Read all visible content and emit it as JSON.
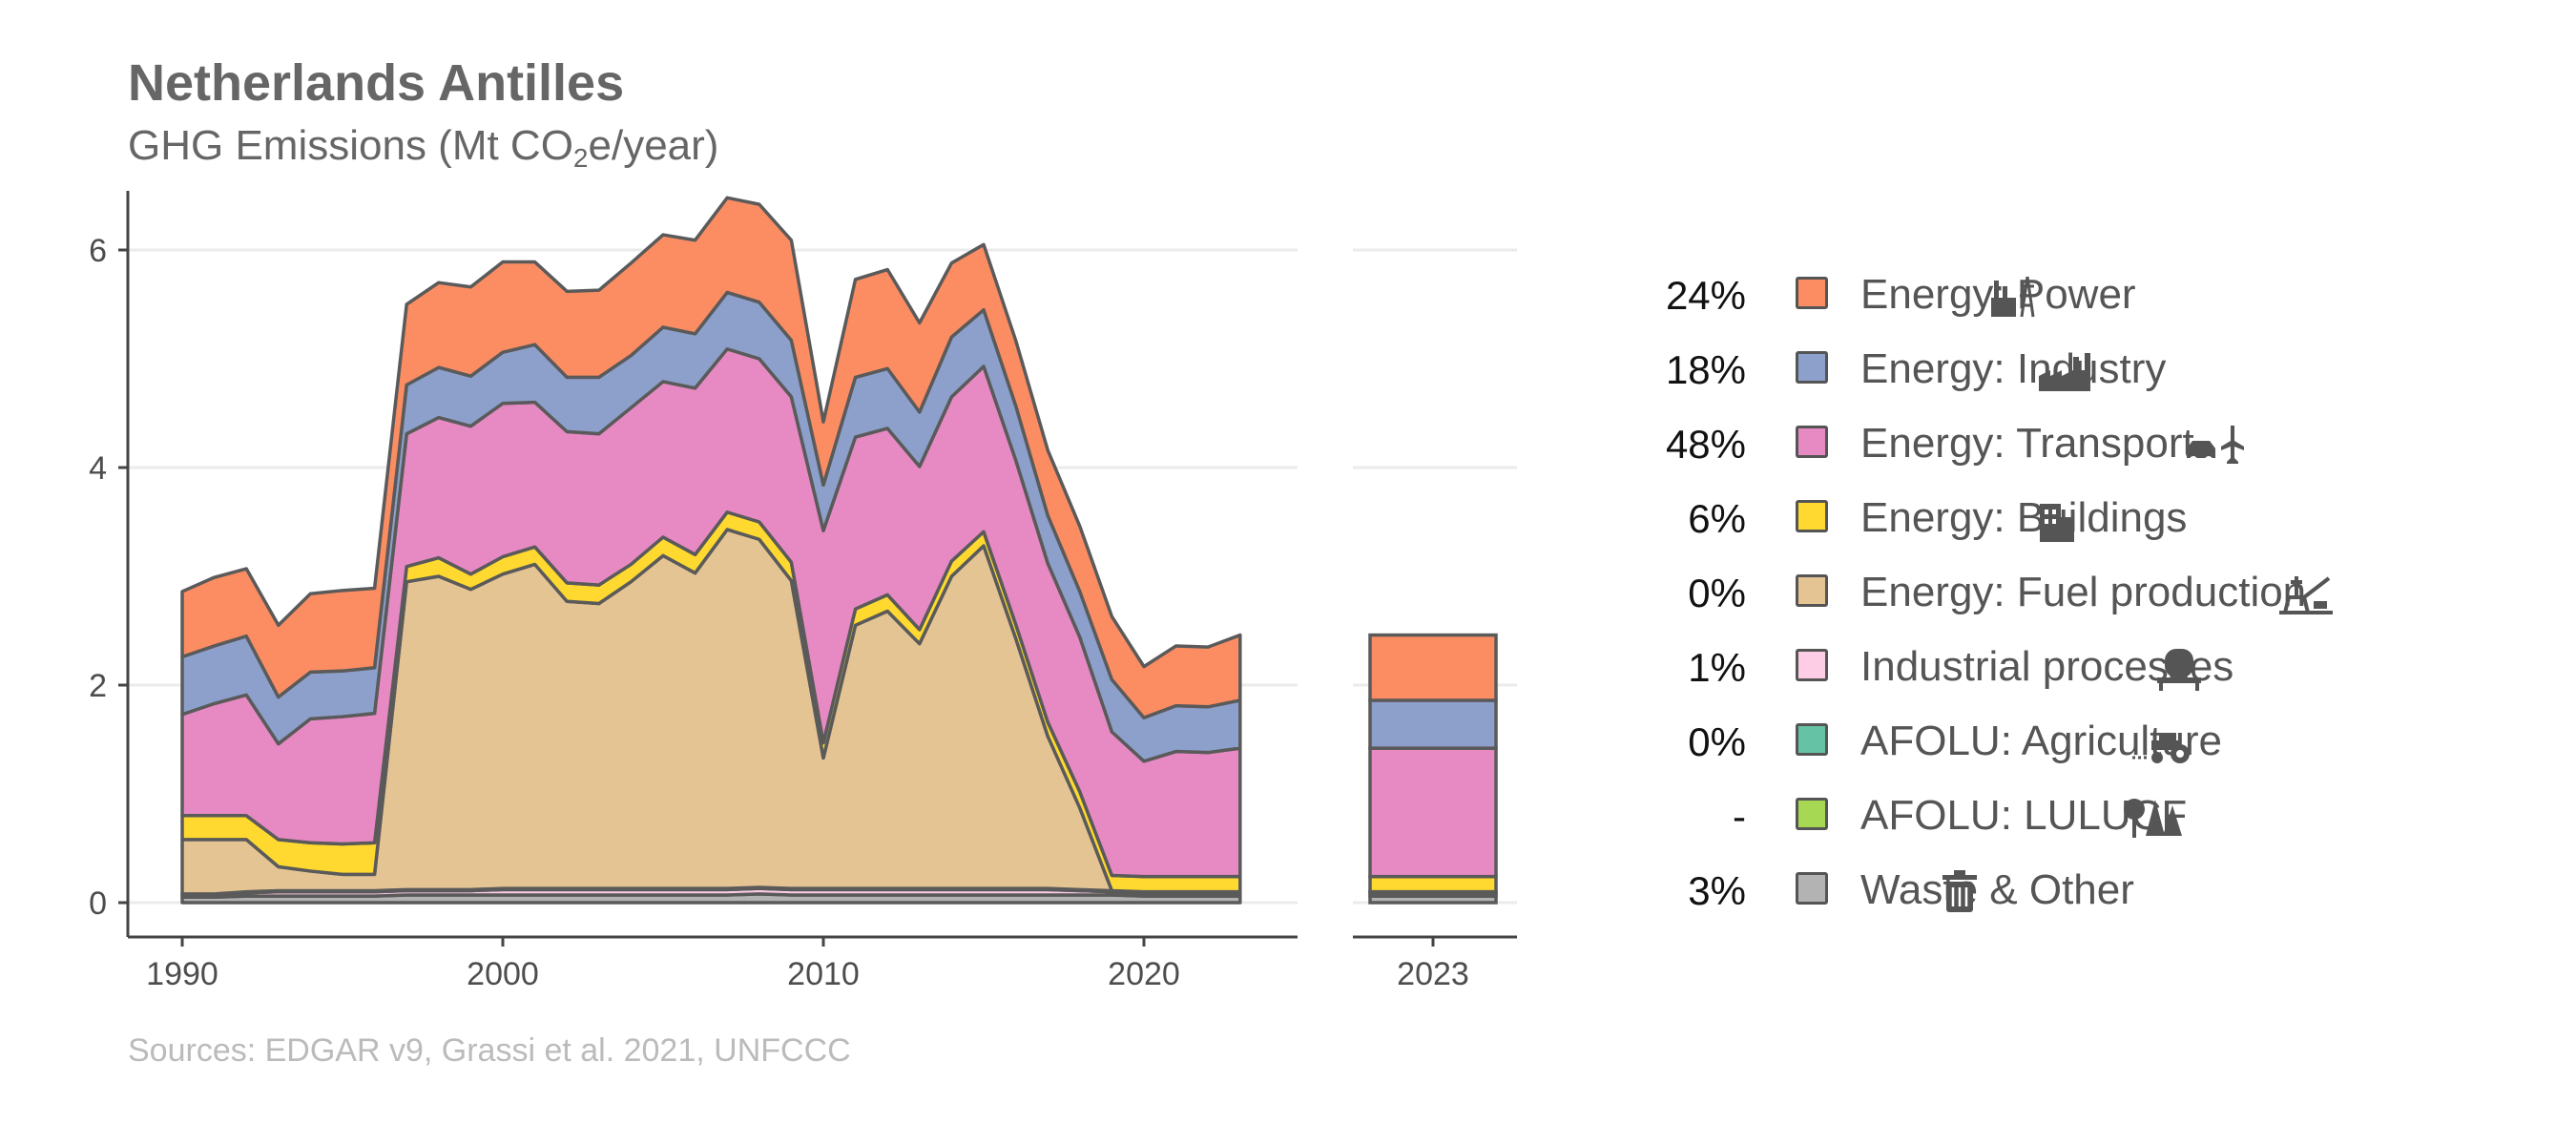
{
  "header": {
    "title": "Netherlands Antilles",
    "subtitle_main": "GHG Emissions (Mt CO",
    "subtitle_sub": "2",
    "subtitle_end": "e/year)"
  },
  "source": "Sources: EDGAR v9, Grassi et al. 2021, UNFCCC",
  "legend": [
    {
      "pct": "24%",
      "label": "Energy: Power",
      "color": "#FC8D62",
      "icon": "power-plant-pylon-icon"
    },
    {
      "pct": "18%",
      "label": "Energy: Industry",
      "color": "#8DA0CB",
      "icon": "factory-icon"
    },
    {
      "pct": "48%",
      "label": "Energy: Transport",
      "color": "#E78AC3",
      "icon": "car-plane-icon"
    },
    {
      "pct": "6%",
      "label": "Energy: Buildings",
      "color": "#FFD92F",
      "icon": "buildings-icon"
    },
    {
      "pct": "0%",
      "label": "Energy: Fuel production",
      "color": "#E5C494",
      "icon": "oil-rig-icon"
    },
    {
      "pct": "1%",
      "label": "Industrial processes",
      "color": "#FCCDE5",
      "icon": "cement-mixer-icon"
    },
    {
      "pct": "0%",
      "label": "AFOLU: Agriculture",
      "color": "#66C2A5",
      "icon": "tractor-icon"
    },
    {
      "pct": "-",
      "label": "AFOLU: LULUCF",
      "color": "#A6D854",
      "icon": "trees-icon"
    },
    {
      "pct": "3%",
      "label": "Waste & Other",
      "color": "#B3B3B3",
      "icon": "trash-can-icon"
    }
  ],
  "chart_data": {
    "type": "area",
    "stacked": true,
    "ylim": [
      0,
      6.6
    ],
    "yticks": [
      0,
      2,
      4,
      6
    ],
    "xlim": [
      1988.4,
      2024.5
    ],
    "xticks": [
      1990,
      2000,
      2010,
      2020
    ],
    "grid": true,
    "x": [
      1990,
      1991,
      1992,
      1993,
      1994,
      1995,
      1996,
      1997,
      1998,
      1999,
      2000,
      2001,
      2002,
      2003,
      2004,
      2005,
      2006,
      2007,
      2008,
      2009,
      2010,
      2011,
      2012,
      2013,
      2014,
      2015,
      2016,
      2017,
      2018,
      2019,
      2020,
      2021,
      2022,
      2023
    ],
    "series": [
      {
        "name": "Waste & Other",
        "color": "#B3B3B3",
        "values": [
          0.05,
          0.05,
          0.06,
          0.06,
          0.06,
          0.06,
          0.06,
          0.07,
          0.07,
          0.07,
          0.07,
          0.07,
          0.07,
          0.07,
          0.07,
          0.07,
          0.07,
          0.07,
          0.08,
          0.07,
          0.07,
          0.07,
          0.07,
          0.07,
          0.07,
          0.07,
          0.07,
          0.07,
          0.07,
          0.07,
          0.06,
          0.06,
          0.06,
          0.06
        ]
      },
      {
        "name": "Industrial processes",
        "color": "#FCCDE5",
        "values": [
          0.02,
          0.02,
          0.03,
          0.04,
          0.04,
          0.04,
          0.04,
          0.04,
          0.04,
          0.04,
          0.05,
          0.05,
          0.05,
          0.05,
          0.05,
          0.05,
          0.05,
          0.05,
          0.05,
          0.05,
          0.05,
          0.05,
          0.05,
          0.05,
          0.05,
          0.05,
          0.05,
          0.05,
          0.04,
          0.03,
          0.03,
          0.03,
          0.03,
          0.03
        ]
      },
      {
        "name": "AFOLU: Agriculture",
        "color": "#66C2A5",
        "values": [
          0.01,
          0.01,
          0.01,
          0.01,
          0.01,
          0.01,
          0.01,
          0.01,
          0.01,
          0.01,
          0.01,
          0.01,
          0.01,
          0.01,
          0.01,
          0.01,
          0.01,
          0.01,
          0.01,
          0.01,
          0.01,
          0.01,
          0.01,
          0.01,
          0.01,
          0.01,
          0.01,
          0.01,
          0.01,
          0.01,
          0.01,
          0.01,
          0.01,
          0.01
        ]
      },
      {
        "name": "Energy: Fuel production",
        "color": "#E5C494",
        "values": [
          0.5,
          0.5,
          0.48,
          0.22,
          0.18,
          0.15,
          0.15,
          2.83,
          2.88,
          2.76,
          2.89,
          2.98,
          2.64,
          2.62,
          2.82,
          3.06,
          2.9,
          3.3,
          3.2,
          2.83,
          1.2,
          2.42,
          2.55,
          2.25,
          2.87,
          3.15,
          2.3,
          1.4,
          0.75,
          0.0,
          0.0,
          0.0,
          0.0,
          0.0
        ]
      },
      {
        "name": "Energy: Buildings",
        "color": "#FFD92F",
        "values": [
          0.22,
          0.22,
          0.22,
          0.25,
          0.26,
          0.28,
          0.29,
          0.14,
          0.17,
          0.14,
          0.16,
          0.16,
          0.17,
          0.17,
          0.16,
          0.17,
          0.17,
          0.16,
          0.16,
          0.17,
          0.14,
          0.15,
          0.15,
          0.13,
          0.14,
          0.13,
          0.13,
          0.13,
          0.15,
          0.14,
          0.14,
          0.14,
          0.14,
          0.14
        ]
      },
      {
        "name": "Energy: Transport",
        "color": "#E78AC3",
        "values": [
          0.93,
          1.03,
          1.11,
          0.88,
          1.14,
          1.17,
          1.19,
          1.22,
          1.29,
          1.36,
          1.41,
          1.33,
          1.39,
          1.39,
          1.44,
          1.43,
          1.53,
          1.5,
          1.5,
          1.52,
          1.95,
          1.58,
          1.53,
          1.5,
          1.51,
          1.52,
          1.51,
          1.46,
          1.42,
          1.32,
          1.06,
          1.15,
          1.14,
          1.18
        ]
      },
      {
        "name": "Energy: Industry",
        "color": "#8DA0CB",
        "values": [
          0.53,
          0.53,
          0.54,
          0.43,
          0.43,
          0.42,
          0.42,
          0.45,
          0.46,
          0.46,
          0.47,
          0.53,
          0.5,
          0.52,
          0.48,
          0.5,
          0.5,
          0.52,
          0.52,
          0.52,
          0.42,
          0.55,
          0.55,
          0.5,
          0.55,
          0.52,
          0.5,
          0.44,
          0.42,
          0.48,
          0.4,
          0.42,
          0.42,
          0.44
        ]
      },
      {
        "name": "Energy: Power",
        "color": "#FC8D62",
        "values": [
          0.6,
          0.63,
          0.62,
          0.66,
          0.72,
          0.74,
          0.73,
          0.74,
          0.78,
          0.82,
          0.83,
          0.76,
          0.79,
          0.8,
          0.85,
          0.85,
          0.86,
          0.87,
          0.9,
          0.92,
          0.58,
          0.9,
          0.91,
          0.82,
          0.68,
          0.6,
          0.6,
          0.6,
          0.6,
          0.58,
          0.47,
          0.55,
          0.55,
          0.6
        ]
      }
    ],
    "bar_2023": {
      "category": "2023",
      "values": [
        {
          "name": "Waste & Other",
          "value": 0.06
        },
        {
          "name": "Industrial processes",
          "value": 0.03
        },
        {
          "name": "AFOLU: Agriculture",
          "value": 0.01
        },
        {
          "name": "Energy: Fuel production",
          "value": 0.0
        },
        {
          "name": "Energy: Buildings",
          "value": 0.14
        },
        {
          "name": "Energy: Transport",
          "value": 1.18
        },
        {
          "name": "Energy: Industry",
          "value": 0.44
        },
        {
          "name": "Energy: Power",
          "value": 0.6
        }
      ]
    }
  }
}
